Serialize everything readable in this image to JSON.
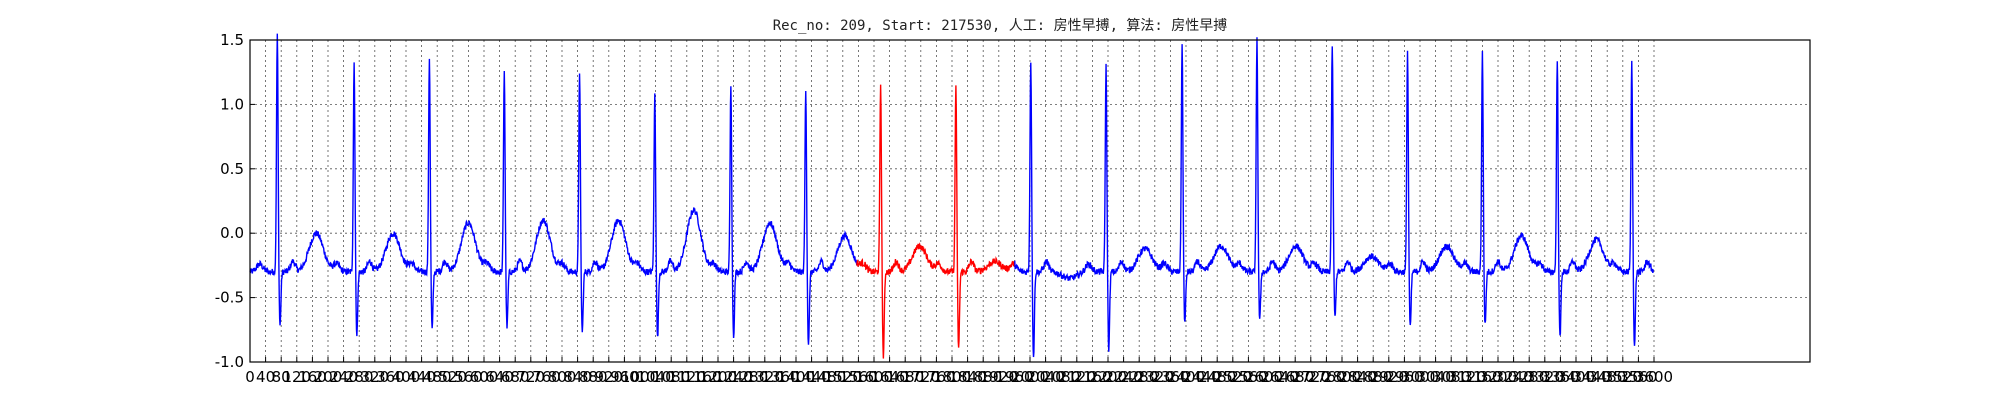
{
  "chart_data": {
    "type": "line",
    "title": "Rec_no: 209, Start: 217530, 人工: 房性早搏, 算法: 房性早搏",
    "xlabel": "",
    "ylabel": "",
    "xlim": [
      0,
      4000
    ],
    "ylim": [
      -1.0,
      1.5
    ],
    "grid": true,
    "yticks": [
      -1.0,
      -0.5,
      0.0,
      0.5,
      1.0,
      1.5
    ],
    "xtick_step": 40,
    "xtick_max": 3600,
    "colors": {
      "normal": "#0000ff",
      "highlight": "#ff0000",
      "grid": "#555555",
      "frame": "#000000"
    },
    "signal_length": 3600,
    "highlight_range": [
      1556,
      1960
    ],
    "beats": [
      {
        "x": 70,
        "peak": 1.55,
        "trough": -0.72,
        "t": 0.0
      },
      {
        "x": 267,
        "peak": 1.33,
        "trough": -0.79,
        "t": 0.0
      },
      {
        "x": 460,
        "peak": 1.37,
        "trough": -0.75,
        "t": 0.08
      },
      {
        "x": 652,
        "peak": 1.27,
        "trough": -0.73,
        "t": 0.1
      },
      {
        "x": 845,
        "peak": 1.26,
        "trough": -0.77,
        "t": 0.1
      },
      {
        "x": 1038,
        "peak": 1.08,
        "trough": -0.82,
        "t": 0.18
      },
      {
        "x": 1233,
        "peak": 1.16,
        "trough": -0.8,
        "t": 0.08
      },
      {
        "x": 1425,
        "peak": 1.12,
        "trough": -0.88,
        "t": -0.02
      },
      {
        "x": 1617,
        "peak": 1.16,
        "trough": -0.96,
        "t": -0.1
      },
      {
        "x": 1810,
        "peak": 1.15,
        "trough": -0.9,
        "t": -0.22
      },
      {
        "x": 2002,
        "peak": 1.34,
        "trough": -0.97,
        "t": -0.35
      },
      {
        "x": 2195,
        "peak": 1.3,
        "trough": -0.9,
        "t": -0.12
      },
      {
        "x": 2390,
        "peak": 1.47,
        "trough": -0.7,
        "t": -0.1
      },
      {
        "x": 2582,
        "peak": 1.52,
        "trough": -0.68,
        "t": -0.1
      },
      {
        "x": 2775,
        "peak": 1.47,
        "trough": -0.66,
        "t": -0.18
      },
      {
        "x": 2968,
        "peak": 1.42,
        "trough": -0.74,
        "t": -0.1
      },
      {
        "x": 3160,
        "peak": 1.4,
        "trough": -0.72,
        "t": -0.02
      },
      {
        "x": 3352,
        "peak": 1.35,
        "trough": -0.82,
        "t": -0.05
      },
      {
        "x": 3543,
        "peak": 1.33,
        "trough": -0.88,
        "t": -0.08
      }
    ]
  }
}
